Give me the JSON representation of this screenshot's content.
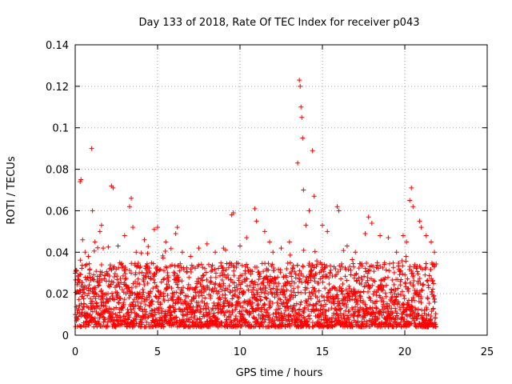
{
  "chart_data": {
    "type": "scatter",
    "title": "Day 133 of 2018, Rate Of TEC Index for receiver p043",
    "xlabel": "GPS time / hours",
    "ylabel": "ROTI / TECUs",
    "xlim": [
      0,
      25
    ],
    "ylim": [
      0,
      0.14
    ],
    "xticks": [
      0,
      5,
      10,
      15,
      20,
      25
    ],
    "xtick_labels": [
      "0",
      "5",
      "10",
      "15",
      "20",
      "25"
    ],
    "yticks": [
      0,
      0.02,
      0.04,
      0.06,
      0.08,
      0.1,
      0.12,
      0.14
    ],
    "ytick_labels": [
      "0",
      "0.02",
      "0.04",
      "0.06",
      "0.08",
      "0.1",
      "0.12",
      "0.14"
    ],
    "grid": true,
    "marker": "plus",
    "color": "#ff0000",
    "series": [
      {
        "name": "ROTI",
        "x": [
          0.0,
          0.15,
          0.3,
          0.35,
          0.45,
          0.6,
          0.8,
          1.0,
          1.05,
          1.2,
          1.5,
          1.6,
          1.7,
          2.2,
          2.3,
          2.6,
          3.0,
          3.3,
          3.4,
          3.5,
          3.7,
          4.2,
          4.8,
          5.0,
          5.5,
          6.1,
          6.2,
          6.5,
          7.0,
          7.5,
          8.0,
          8.5,
          9.0,
          9.5,
          9.6,
          10.0,
          10.4,
          10.9,
          11.0,
          11.5,
          11.8,
          12.0,
          12.5,
          13.0,
          13.5,
          13.6,
          13.65,
          13.7,
          13.75,
          13.8,
          13.85,
          14.0,
          14.2,
          14.4,
          14.5,
          15.0,
          15.3,
          15.9,
          16.0,
          16.5,
          17.0,
          17.6,
          17.8,
          18.0,
          18.5,
          19.0,
          19.5,
          19.9,
          20.1,
          20.3,
          20.4,
          20.5,
          20.9,
          21.0,
          21.3,
          21.6,
          21.8
        ],
        "y": [
          0.01,
          0.012,
          0.074,
          0.075,
          0.046,
          0.04,
          0.038,
          0.09,
          0.06,
          0.045,
          0.05,
          0.053,
          0.042,
          0.072,
          0.071,
          0.043,
          0.048,
          0.062,
          0.066,
          0.052,
          0.04,
          0.046,
          0.051,
          0.052,
          0.045,
          0.049,
          0.052,
          0.04,
          0.038,
          0.042,
          0.044,
          0.04,
          0.042,
          0.058,
          0.059,
          0.043,
          0.047,
          0.061,
          0.055,
          0.05,
          0.045,
          0.04,
          0.042,
          0.045,
          0.083,
          0.123,
          0.12,
          0.11,
          0.105,
          0.095,
          0.07,
          0.053,
          0.06,
          0.089,
          0.067,
          0.053,
          0.05,
          0.062,
          0.06,
          0.043,
          0.04,
          0.049,
          0.057,
          0.054,
          0.048,
          0.047,
          0.04,
          0.048,
          0.045,
          0.065,
          0.071,
          0.062,
          0.055,
          0.052,
          0.048,
          0.045,
          0.04
        ]
      }
    ],
    "band": {
      "description": "dense background scatter",
      "x_range": [
        0,
        21.9
      ],
      "y_typical_range": [
        0.004,
        0.035
      ]
    }
  }
}
